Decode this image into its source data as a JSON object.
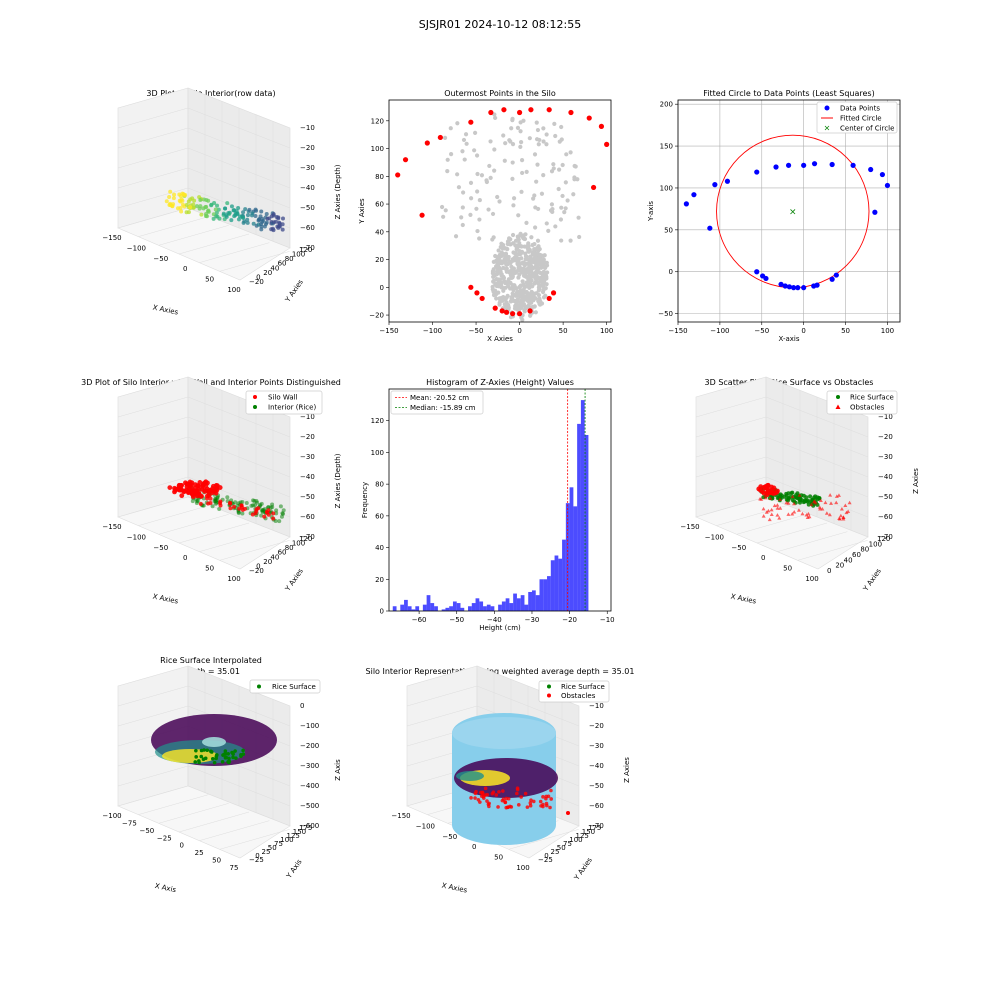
{
  "figure": {
    "suptitle": "SJSJR01 2024-10-12 08:12:55"
  },
  "colors": {
    "wall": "#ff0000",
    "rice": "#008000",
    "hist": "#0000ff",
    "points": "#0000ff",
    "gray": "#c8c8c8",
    "silo": "#87ceeb",
    "circle": "#ff0000",
    "center": "#008000",
    "grid": "#b0b0b0"
  },
  "panels": {
    "p1": {
      "title": "3D Plot of Silo Interior(row data)",
      "xlabel": "X Axies",
      "ylabel": "Y Axies",
      "zlabel": "Z Axies (Depth)",
      "xticks": [
        "−150",
        "−100",
        "−50",
        "0",
        "50",
        "100"
      ],
      "yticks": [
        "−20",
        "0",
        "20",
        "40",
        "60",
        "80",
        "100",
        "120"
      ],
      "zticks": [
        "−10",
        "−20",
        "−30",
        "−40",
        "−50",
        "−60",
        "−70"
      ]
    },
    "p2": {
      "title": "Outermost Points in the Silo",
      "xlabel": "X Axies",
      "ylabel": "Y Axies"
    },
    "p3": {
      "title": "Fitted Circle to Data Points (Least Squares)",
      "xlabel": "X-axis",
      "ylabel": "Y-axis",
      "legend": [
        "Data Points",
        "Fitted Circle",
        "Center of Circle"
      ]
    },
    "p4": {
      "title": "3D Plot of Silo Interior with Wall and Interior Points Distinguished",
      "xlabel": "X Axies",
      "ylabel": "Y Axies",
      "zlabel": "Z Axies (Depth)",
      "legend": [
        "Silo Wall",
        "Interior (Rice)"
      ],
      "xticks": [
        "−150",
        "−100",
        "−50",
        "0",
        "50",
        "100"
      ],
      "yticks": [
        "−20",
        "0",
        "20",
        "40",
        "60",
        "80",
        "100",
        "120"
      ],
      "zticks": [
        "−10",
        "−20",
        "−30",
        "−40",
        "−50",
        "−60",
        "−70"
      ]
    },
    "p5": {
      "title": "Histogram of Z-Axies (Height) Values",
      "xlabel": "Height (cm)",
      "ylabel": "Frequency",
      "legend": [
        "Mean: -20.52 cm",
        "Median: -15.89 cm"
      ]
    },
    "p6": {
      "title": "3D Scatter Plot: Rice Surface vs Obstacles",
      "xlabel": "X Axies",
      "ylabel": "Y Axies",
      "zlabel": "Z Axies",
      "legend": [
        "Rice Surface",
        "Obstacles"
      ],
      "xticks": [
        "−150",
        "−100",
        "−50",
        "0",
        "50",
        "100"
      ],
      "yticks": [
        "0",
        "20",
        "40",
        "60",
        "80",
        "100",
        "120"
      ],
      "zticks": [
        "−10",
        "−20",
        "−30",
        "−40",
        "−50",
        "−60",
        "−70"
      ]
    },
    "p7": {
      "title_line1": "Rice Surface Interpolated",
      "title_line2": "depth = 35.01",
      "xlabel": "X Axis",
      "ylabel": "Y Axis",
      "zlabel": "Z Axis",
      "legend": [
        "Rice Surface"
      ],
      "xticks": [
        "−100",
        "−75",
        "−50",
        "−25",
        "0",
        "25",
        "50",
        "75"
      ],
      "yticks": [
        "−25",
        "0",
        "25",
        "50",
        "75",
        "100",
        "125",
        "150",
        "175"
      ],
      "zticks": [
        "0",
        "−100",
        "−200",
        "−300",
        "−400",
        "−500",
        "−600"
      ]
    },
    "p8": {
      "title": "Silo Interior Representation using weighted average depth = 35.01",
      "xlabel": "X Axies",
      "ylabel": "Y Axies",
      "zlabel": "Z Axies",
      "legend": [
        "Rice Surface",
        "Obstacles"
      ],
      "xticks": [
        "−150",
        "−100",
        "−50",
        "0",
        "50",
        "100"
      ],
      "yticks": [
        "−25",
        "0",
        "25",
        "50",
        "75",
        "100",
        "125",
        "150",
        "175"
      ],
      "zticks": [
        "−10",
        "−20",
        "−30",
        "−40",
        "−50",
        "−60",
        "−70"
      ]
    }
  },
  "chart_data": [
    {
      "type": "scatter",
      "title": "Outermost Points in the Silo",
      "xlabel": "X Axies",
      "ylabel": "Y Axies",
      "xlim": [
        -150,
        105
      ],
      "ylim": [
        -25,
        135
      ],
      "xticks": [
        -150,
        -100,
        -50,
        0,
        50,
        100
      ],
      "yticks": [
        -20,
        0,
        20,
        40,
        60,
        80,
        100,
        120
      ],
      "series": [
        {
          "color": "#ff0000",
          "x": [
            -140,
            -131,
            -106,
            -91,
            -112,
            -56,
            -33,
            -18,
            0,
            13,
            34,
            59,
            80,
            94,
            100,
            85,
            -56,
            -49,
            -43,
            -28,
            -20,
            -15,
            -8,
            0,
            12,
            34,
            39
          ],
          "y": [
            81,
            92,
            104,
            108,
            52,
            119,
            126,
            128,
            126,
            128,
            128,
            126,
            122,
            116,
            103,
            72,
            0,
            -4,
            -8,
            -15,
            -17,
            -18,
            -19,
            -19,
            -17,
            -8,
            -4
          ]
        }
      ]
    },
    {
      "type": "scatter",
      "title": "Fitted Circle to Data Points (Least Squares)",
      "xlabel": "X-axis",
      "ylabel": "Y-axis",
      "xlim": [
        -150,
        115
      ],
      "ylim": [
        -60,
        205
      ],
      "xticks": [
        -150,
        -100,
        -50,
        0,
        50,
        100
      ],
      "yticks": [
        -50,
        0,
        50,
        100,
        150,
        200
      ],
      "grid": true,
      "legend_position": "top-right",
      "series": [
        {
          "name": "Data Points",
          "color": "#0000ff",
          "x": [
            -140,
            -131,
            -106,
            -91,
            -112,
            -56,
            -33,
            -18,
            0,
            13,
            34,
            59,
            80,
            94,
            100,
            85,
            -56,
            -49,
            -45,
            -27,
            -22,
            -17,
            -12,
            -7,
            0,
            12,
            16,
            34,
            39
          ],
          "y": [
            81,
            92,
            104,
            108,
            52,
            119,
            125,
            127,
            127,
            129,
            128,
            127,
            122,
            116,
            103,
            71,
            0,
            -5,
            -8,
            -15,
            -17,
            -18,
            -19,
            -19,
            -19,
            -17,
            -16,
            -9,
            -4
          ]
        },
        {
          "name": "Fitted Circle",
          "color": "#ff0000",
          "center": [
            -13,
            72
          ],
          "radius": 91
        },
        {
          "name": "Center of Circle",
          "color": "#008000",
          "x": [
            -13
          ],
          "y": [
            72
          ]
        }
      ]
    },
    {
      "type": "bar",
      "title": "Histogram of Z-Axies (Height) Values",
      "xlabel": "Height (cm)",
      "ylabel": "Frequency",
      "xlim": [
        -68,
        -9
      ],
      "ylim": [
        0,
        140
      ],
      "xticks": [
        -60,
        -50,
        -40,
        -30,
        -20,
        -10
      ],
      "yticks": [
        0,
        20,
        40,
        60,
        80,
        100,
        120
      ],
      "bin_start": -67,
      "bin_width": 1,
      "values": [
        3,
        0,
        4,
        7,
        3,
        1,
        3,
        0,
        4,
        10,
        5,
        3,
        0,
        1,
        2,
        3,
        6,
        5,
        2,
        0,
        3,
        5,
        8,
        6,
        3,
        4,
        3,
        0,
        4,
        6,
        8,
        5,
        11,
        8,
        10,
        4,
        12,
        13,
        10,
        20,
        20,
        22,
        32,
        35,
        33,
        45,
        68,
        78,
        66,
        118,
        133,
        111
      ],
      "mean": -20.52,
      "median": -15.89,
      "legend": [
        "Mean: -20.52 cm",
        "Median: -15.89 cm"
      ],
      "legend_position": "top-left"
    }
  ]
}
